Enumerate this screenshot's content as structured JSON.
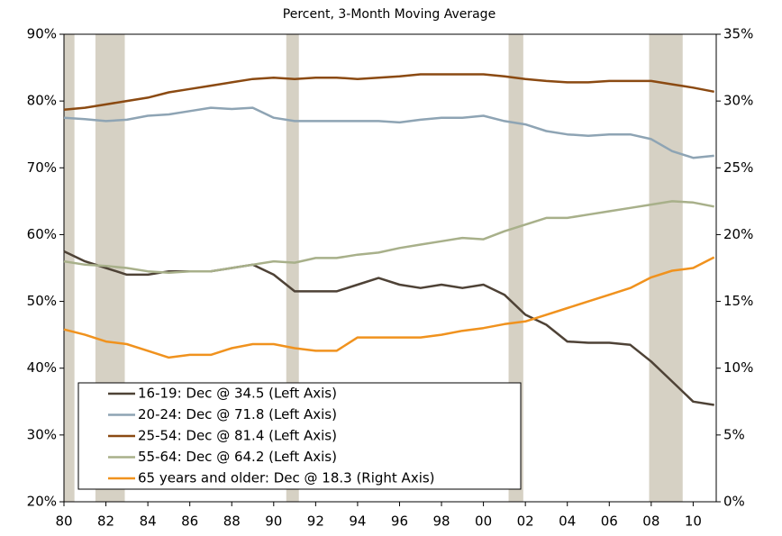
{
  "chart_data": {
    "type": "line",
    "subtitle": "Percent, 3-Month Moving Average",
    "x": [
      1980,
      1981,
      1982,
      1983,
      1984,
      1985,
      1986,
      1987,
      1988,
      1989,
      1990,
      1991,
      1992,
      1993,
      1994,
      1995,
      1996,
      1997,
      1998,
      1999,
      2000,
      2001,
      2002,
      2003,
      2004,
      2005,
      2006,
      2007,
      2008,
      2009,
      2010,
      2011
    ],
    "xlim": [
      1980,
      2011.1
    ],
    "xticks": [
      {
        "value": 1980,
        "label": "80"
      },
      {
        "value": 1982,
        "label": "82"
      },
      {
        "value": 1984,
        "label": "84"
      },
      {
        "value": 1986,
        "label": "86"
      },
      {
        "value": 1988,
        "label": "88"
      },
      {
        "value": 1990,
        "label": "90"
      },
      {
        "value": 1992,
        "label": "92"
      },
      {
        "value": 1994,
        "label": "94"
      },
      {
        "value": 1996,
        "label": "96"
      },
      {
        "value": 1998,
        "label": "98"
      },
      {
        "value": 2000,
        "label": "00"
      },
      {
        "value": 2002,
        "label": "02"
      },
      {
        "value": 2004,
        "label": "04"
      },
      {
        "value": 2006,
        "label": "06"
      },
      {
        "value": 2008,
        "label": "08"
      },
      {
        "value": 2010,
        "label": "10"
      }
    ],
    "ylim": [
      20,
      90
    ],
    "yticks": [
      {
        "value": 20,
        "label": "20%"
      },
      {
        "value": 30,
        "label": "30%"
      },
      {
        "value": 40,
        "label": "40%"
      },
      {
        "value": 50,
        "label": "50%"
      },
      {
        "value": 60,
        "label": "60%"
      },
      {
        "value": 70,
        "label": "70%"
      },
      {
        "value": 80,
        "label": "80%"
      },
      {
        "value": 90,
        "label": "90%"
      }
    ],
    "y2lim": [
      0,
      35
    ],
    "y2ticks": [
      {
        "value": 0,
        "label": "0%"
      },
      {
        "value": 5,
        "label": "5%"
      },
      {
        "value": 10,
        "label": "10%"
      },
      {
        "value": 15,
        "label": "15%"
      },
      {
        "value": 20,
        "label": "20%"
      },
      {
        "value": 25,
        "label": "25%"
      },
      {
        "value": 30,
        "label": "30%"
      },
      {
        "value": 35,
        "label": "35%"
      }
    ],
    "recessions": [
      [
        1980,
        1980.5
      ],
      [
        1981.5,
        1982.9
      ],
      [
        1990.6,
        1991.2
      ],
      [
        2001.2,
        2001.9
      ],
      [
        2007.9,
        2009.5
      ]
    ],
    "recession_color": "#d6d1c4",
    "grid": false,
    "series": [
      {
        "name": "16-19: Dec @ 34.5 (Left Axis)",
        "color": "#4e4236",
        "values": [
          57.5,
          56,
          55,
          54,
          54,
          54.5,
          54.5,
          54.5,
          55,
          55.5,
          54,
          51.5,
          51.5,
          51.5,
          52.5,
          53.5,
          52.5,
          52,
          52.5,
          52,
          52.5,
          51,
          48,
          46.5,
          44,
          43.8,
          43.8,
          43.5,
          41,
          38,
          35,
          34.5
        ]
      },
      {
        "name": "20-24: Dec @ 71.8 (Left Axis)",
        "color": "#8ea4b4",
        "values": [
          77.5,
          77.3,
          77,
          77.2,
          77.8,
          78,
          78.5,
          79,
          78.8,
          79,
          77.5,
          77,
          77,
          77,
          77,
          77,
          76.8,
          77.2,
          77.5,
          77.5,
          77.8,
          77,
          76.5,
          75.5,
          75,
          74.8,
          75,
          75,
          74.3,
          72.5,
          71.5,
          71.8
        ]
      },
      {
        "name": "25-54: Dec @ 81.4 (Left Axis)",
        "color": "#8b4a12",
        "values": [
          78.7,
          79,
          79.5,
          80,
          80.5,
          81.3,
          81.8,
          82.3,
          82.8,
          83.3,
          83.5,
          83.3,
          83.5,
          83.5,
          83.3,
          83.5,
          83.7,
          84,
          84,
          84,
          84,
          83.7,
          83.3,
          83,
          82.8,
          82.8,
          83,
          83,
          83,
          82.5,
          82,
          81.4
        ]
      },
      {
        "name": "55-64: Dec @ 64.2 (Left Axis)",
        "color": "#a8b08a",
        "values": [
          56,
          55.5,
          55.3,
          55,
          54.5,
          54.3,
          54.5,
          54.5,
          55,
          55.5,
          56,
          55.8,
          56.5,
          56.5,
          57,
          57.3,
          58,
          58.5,
          59,
          59.5,
          59.3,
          60.5,
          61.5,
          62.5,
          62.5,
          63,
          63.5,
          64,
          64.5,
          65,
          64.8,
          64.2
        ]
      },
      {
        "name": "65 years and older: Dec @ 18.3 (Right Axis)",
        "color": "#f0921e",
        "axis": "y2",
        "values": [
          12.9,
          12.5,
          12,
          11.8,
          11.3,
          10.8,
          11,
          11,
          11.5,
          11.8,
          11.8,
          11.5,
          11.3,
          11.3,
          12.3,
          12.3,
          12.3,
          12.3,
          12.5,
          12.8,
          13,
          13.3,
          13.5,
          14,
          14.5,
          15,
          15.5,
          16,
          16.8,
          17.3,
          17.5,
          18.3
        ]
      }
    ]
  }
}
